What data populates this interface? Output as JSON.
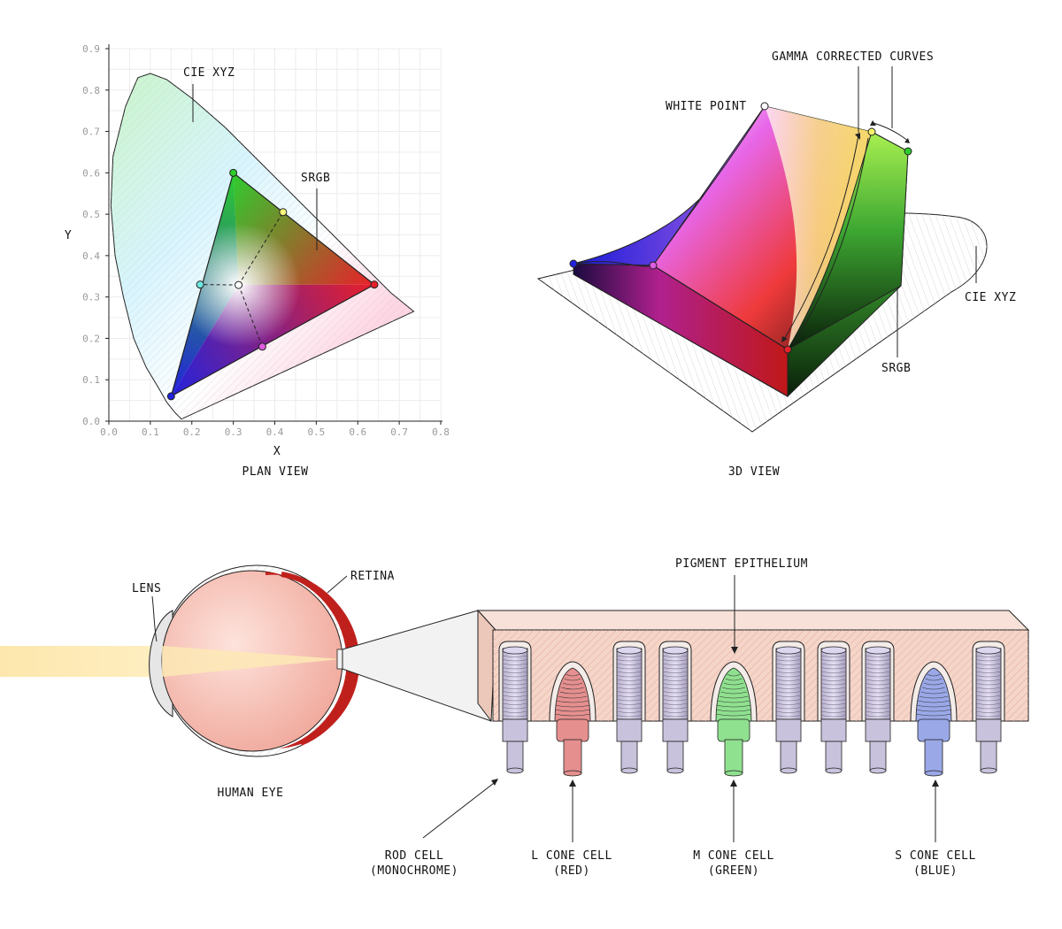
{
  "labels": {
    "cie_xyz": "CIE XYZ",
    "srgb": "SRGB",
    "plan_view": "PLAN VIEW",
    "x_axis": "X",
    "y_axis": "Y",
    "gamma_corrected_curves": "GAMMA CORRECTED CURVES",
    "white_point": "WHITE POINT",
    "cie_xyz_3d": "CIE XYZ",
    "srgb_3d": "SRGB",
    "view_3d": "3D VIEW",
    "lens": "LENS",
    "retina": "RETINA",
    "human_eye": "HUMAN EYE",
    "pigment_epithelium": "PIGMENT EPITHELIUM",
    "rod_cell": "ROD CELL",
    "rod_cell_sub": "(MONOCHROME)",
    "l_cone": "L CONE CELL",
    "l_cone_sub": "(RED)",
    "m_cone": "M CONE CELL",
    "m_cone_sub": "(GREEN)",
    "s_cone": "S CONE CELL",
    "s_cone_sub": "(BLUE)"
  },
  "chart_data": {
    "type": "scatter",
    "xlabel": "X",
    "ylabel": "Y",
    "xlim": [
      0,
      0.8
    ],
    "ylim": [
      0,
      0.9
    ],
    "x_ticks": [
      "0.0",
      "0.1",
      "0.2",
      "0.3",
      "0.4",
      "0.5",
      "0.6",
      "0.7",
      "0.8"
    ],
    "y_ticks": [
      "0.0",
      "0.1",
      "0.2",
      "0.3",
      "0.4",
      "0.5",
      "0.6",
      "0.7",
      "0.8",
      "0.9"
    ],
    "srgb_primaries": [
      {
        "x": 0.64,
        "y": 0.33,
        "color": "#e8202a"
      },
      {
        "x": 0.3,
        "y": 0.6,
        "color": "#2ecc2e"
      },
      {
        "x": 0.15,
        "y": 0.06,
        "color": "#2222dd"
      }
    ],
    "srgb_secondaries": [
      {
        "x": 0.42,
        "y": 0.505,
        "color": "#f5f57a"
      },
      {
        "x": 0.22,
        "y": 0.33,
        "color": "#6ee8e0"
      },
      {
        "x": 0.37,
        "y": 0.18,
        "color": "#e05ce0"
      }
    ],
    "white_point": {
      "x": 0.3127,
      "y": 0.329
    },
    "spectral_locus": [
      [
        0.175,
        0.005
      ],
      [
        0.17,
        0.01
      ],
      [
        0.16,
        0.02
      ],
      [
        0.14,
        0.045
      ],
      [
        0.12,
        0.08
      ],
      [
        0.09,
        0.13
      ],
      [
        0.06,
        0.2
      ],
      [
        0.035,
        0.3
      ],
      [
        0.015,
        0.4
      ],
      [
        0.005,
        0.52
      ],
      [
        0.01,
        0.64
      ],
      [
        0.04,
        0.76
      ],
      [
        0.07,
        0.83
      ],
      [
        0.1,
        0.84
      ],
      [
        0.14,
        0.825
      ],
      [
        0.2,
        0.78
      ],
      [
        0.28,
        0.71
      ],
      [
        0.35,
        0.64
      ],
      [
        0.44,
        0.55
      ],
      [
        0.52,
        0.47
      ],
      [
        0.6,
        0.39
      ],
      [
        0.68,
        0.31
      ],
      [
        0.735,
        0.265
      ]
    ]
  },
  "colors": {
    "rod": "#c9c2dc",
    "rod_top": "#ddd6ef",
    "l_cone": "#e58f8f",
    "m_cone": "#8fe08f",
    "s_cone": "#9aa8e8",
    "tissue": "#f5d5c8",
    "retina": "#c0201c",
    "eyeball": "#f6c6bc",
    "light_beam": "#fde9b5"
  },
  "cells": [
    "rod",
    "l_cone",
    "rod",
    "rod",
    "m_cone",
    "rod",
    "rod",
    "rod",
    "s_cone",
    "rod"
  ]
}
